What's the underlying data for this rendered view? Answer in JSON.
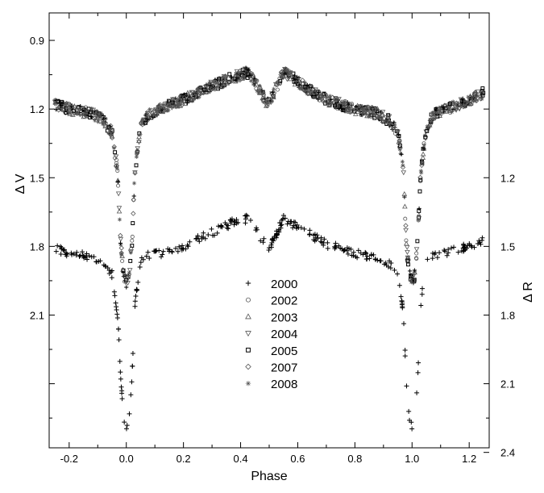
{
  "chart_data": {
    "type": "scatter",
    "xlabel": "Phase",
    "ylabel_left": "Δ V",
    "ylabel_right": "Δ R",
    "xlim": [
      -0.27,
      1.27
    ],
    "ylim_left": [
      2.68,
      0.78
    ],
    "ylim_right": [
      2.38,
      0.48
    ],
    "x_ticks": [
      -0.2,
      0.0,
      0.2,
      0.4,
      0.6,
      0.8,
      1.0,
      1.2
    ],
    "x_tick_labels": [
      "-0.2",
      "0.0",
      "0.2",
      "0.4",
      "0.6",
      "0.8",
      "1.0",
      "1.2"
    ],
    "y_left_major_ticks": [
      0.9,
      1.2,
      1.5,
      1.8,
      2.1,
      2.4
    ],
    "y_left_tick_labels": [
      "0.9",
      "1.2",
      "1.5",
      "1.8",
      "2.1",
      ""
    ],
    "y_left_minor_ticks": [
      1.05,
      1.35,
      1.65,
      1.95,
      2.25,
      2.55
    ],
    "y_right_major_ticks": [
      0.9,
      1.2,
      1.5,
      1.8,
      2.1,
      2.4
    ],
    "y_right_tick_labels": [
      "",
      "1.2",
      "1.5",
      "1.8",
      "2.1",
      "2.4"
    ],
    "y_right_minor_ticks": [
      1.05,
      1.35,
      1.65,
      1.95,
      2.25
    ],
    "grid": false,
    "legend_position": "lower-center",
    "series": [
      {
        "name": "2000",
        "marker": "plus",
        "band": "V",
        "color": "#000000"
      },
      {
        "name": "2002",
        "marker": "circle",
        "band": "V",
        "color": "#555555"
      },
      {
        "name": "2003",
        "marker": "triangle-up",
        "band": "V",
        "color": "#555555"
      },
      {
        "name": "2004",
        "marker": "triangle-down",
        "band": "V",
        "color": "#555555"
      },
      {
        "name": "2005",
        "marker": "square",
        "band": "V",
        "color": "#000000"
      },
      {
        "name": "2007",
        "marker": "diamond",
        "band": "V",
        "color": "#555555"
      },
      {
        "name": "2008",
        "marker": "star",
        "band": "V",
        "color": "#555555"
      },
      {
        "name": "2000",
        "marker": "plus",
        "band": "R",
        "color": "#000000"
      }
    ],
    "light_curve_V": {
      "phase": [
        0.0,
        0.01,
        0.02,
        0.03,
        0.05,
        0.08,
        0.12,
        0.2,
        0.3,
        0.38,
        0.42,
        0.45,
        0.48,
        0.5,
        0.52,
        0.55,
        0.58,
        0.62,
        0.7,
        0.8,
        0.88,
        0.92,
        0.95,
        0.97,
        0.98,
        0.99,
        1.0
      ],
      "dV": [
        1.96,
        1.92,
        1.78,
        1.48,
        1.28,
        1.22,
        1.2,
        1.16,
        1.1,
        1.06,
        1.04,
        1.08,
        1.15,
        1.18,
        1.12,
        1.04,
        1.06,
        1.1,
        1.16,
        1.2,
        1.22,
        1.25,
        1.3,
        1.48,
        1.78,
        1.92,
        1.96
      ]
    },
    "light_curve_R": {
      "phase": [
        0.0,
        0.01,
        0.02,
        0.03,
        0.05,
        0.08,
        0.12,
        0.2,
        0.3,
        0.38,
        0.42,
        0.45,
        0.48,
        0.5,
        0.52,
        0.55,
        0.58,
        0.62,
        0.7,
        0.8,
        0.88,
        0.92,
        0.95,
        0.97,
        0.98,
        0.99,
        1.0
      ],
      "dR": [
        2.3,
        2.24,
        2.08,
        1.75,
        1.56,
        1.54,
        1.53,
        1.5,
        1.44,
        1.39,
        1.38,
        1.42,
        1.48,
        1.51,
        1.46,
        1.38,
        1.4,
        1.43,
        1.49,
        1.53,
        1.55,
        1.58,
        1.62,
        1.8,
        2.08,
        2.24,
        2.3
      ]
    }
  }
}
